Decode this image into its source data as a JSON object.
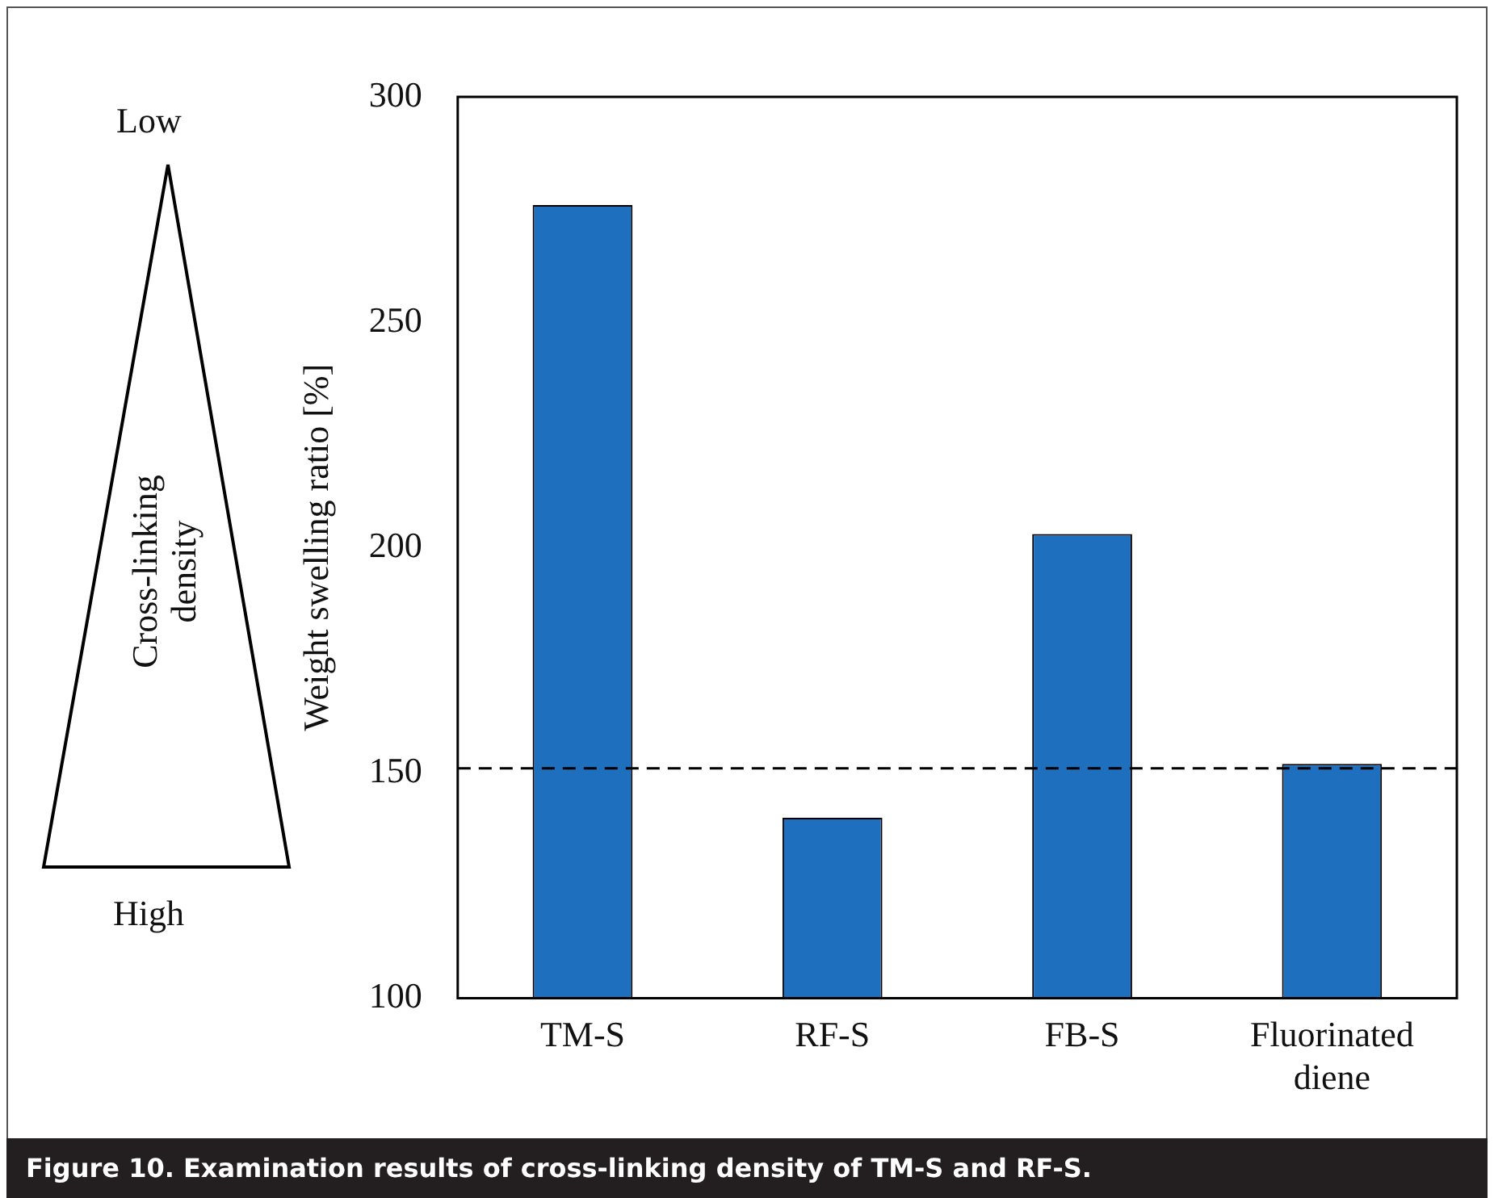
{
  "chart_data": {
    "type": "bar",
    "title": "Figure 10. Examination results of cross-linking density of TM-S and RF-S.",
    "ylabel": "Weight swelling ratio [%]",
    "categories": [
      "TM-S",
      "RF-S",
      "FB-S",
      "Fluorinated diene"
    ],
    "values": [
      276,
      140,
      203,
      152
    ],
    "color": "#1f6fbf",
    "ylim": [
      100,
      300
    ],
    "yticks": [
      100,
      150,
      200,
      250,
      300
    ],
    "grid": false,
    "legend": false,
    "ref_lines": [
      {
        "axis": "y",
        "value": 151,
        "line_style": "dashed",
        "color": "#000000"
      }
    ],
    "annotations": [
      "Low",
      "Cross-linking density",
      "High"
    ]
  }
}
